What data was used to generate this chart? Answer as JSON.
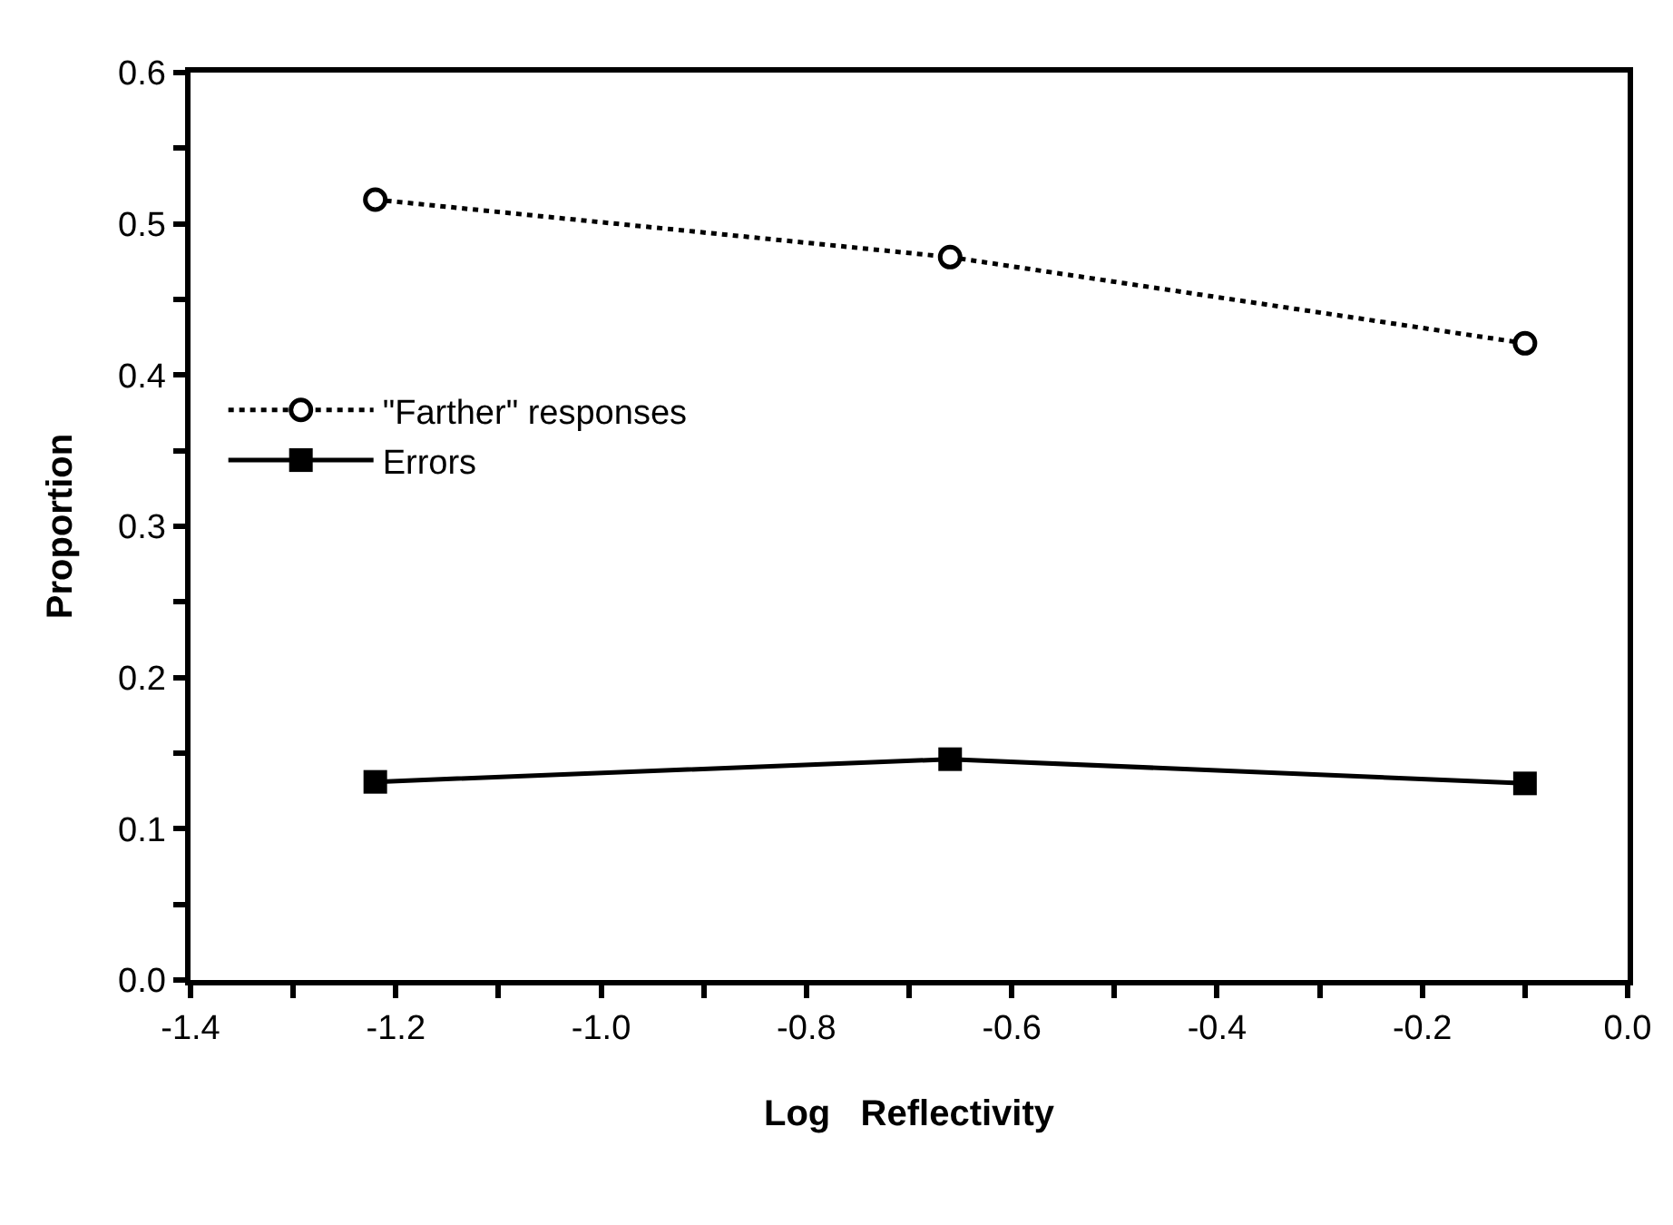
{
  "chart_data": {
    "type": "line",
    "xlabel": "Log   Reflectivity",
    "ylabel": "Proportion",
    "x": [
      -1.22,
      -0.66,
      -0.1
    ],
    "series": [
      {
        "name": "\"Farther\" responses",
        "color": "#000000",
        "values": [
          0.516,
          0.478,
          0.421
        ],
        "marker": "circle",
        "line_style": "dotted"
      },
      {
        "name": "Errors",
        "color": "#000000",
        "values": [
          0.131,
          0.146,
          0.13
        ],
        "marker": "square",
        "line_style": "solid"
      }
    ],
    "xlim": [
      -1.4,
      0.0
    ],
    "xticks": [
      {
        "value": -1.4,
        "label": "-1.4"
      },
      {
        "value": -1.3,
        "label": null
      },
      {
        "value": -1.2,
        "label": "-1.2"
      },
      {
        "value": -1.1,
        "label": null
      },
      {
        "value": -1.0,
        "label": "-1.0"
      },
      {
        "value": -0.9,
        "label": null
      },
      {
        "value": -0.8,
        "label": "-0.8"
      },
      {
        "value": -0.7,
        "label": null
      },
      {
        "value": -0.6,
        "label": "-0.6"
      },
      {
        "value": -0.5,
        "label": null
      },
      {
        "value": -0.4,
        "label": "-0.4"
      },
      {
        "value": -0.3,
        "label": null
      },
      {
        "value": -0.2,
        "label": "-0.2"
      },
      {
        "value": -0.1,
        "label": null
      },
      {
        "value": 0.0,
        "label": "0.0"
      }
    ],
    "ylim": [
      0.0,
      0.6
    ],
    "yticks": [
      {
        "value": 0.0,
        "label": "0.0"
      },
      {
        "value": 0.05,
        "label": null
      },
      {
        "value": 0.1,
        "label": "0.1"
      },
      {
        "value": 0.15,
        "label": null
      },
      {
        "value": 0.2,
        "label": "0.2"
      },
      {
        "value": 0.25,
        "label": null
      },
      {
        "value": 0.3,
        "label": "0.3"
      },
      {
        "value": 0.35,
        "label": null
      },
      {
        "value": 0.4,
        "label": "0.4"
      },
      {
        "value": 0.45,
        "label": null
      },
      {
        "value": 0.5,
        "label": "0.5"
      },
      {
        "value": 0.55,
        "label": null
      },
      {
        "value": 0.6,
        "label": "0.6"
      }
    ],
    "grid": false,
    "legend": "left"
  }
}
